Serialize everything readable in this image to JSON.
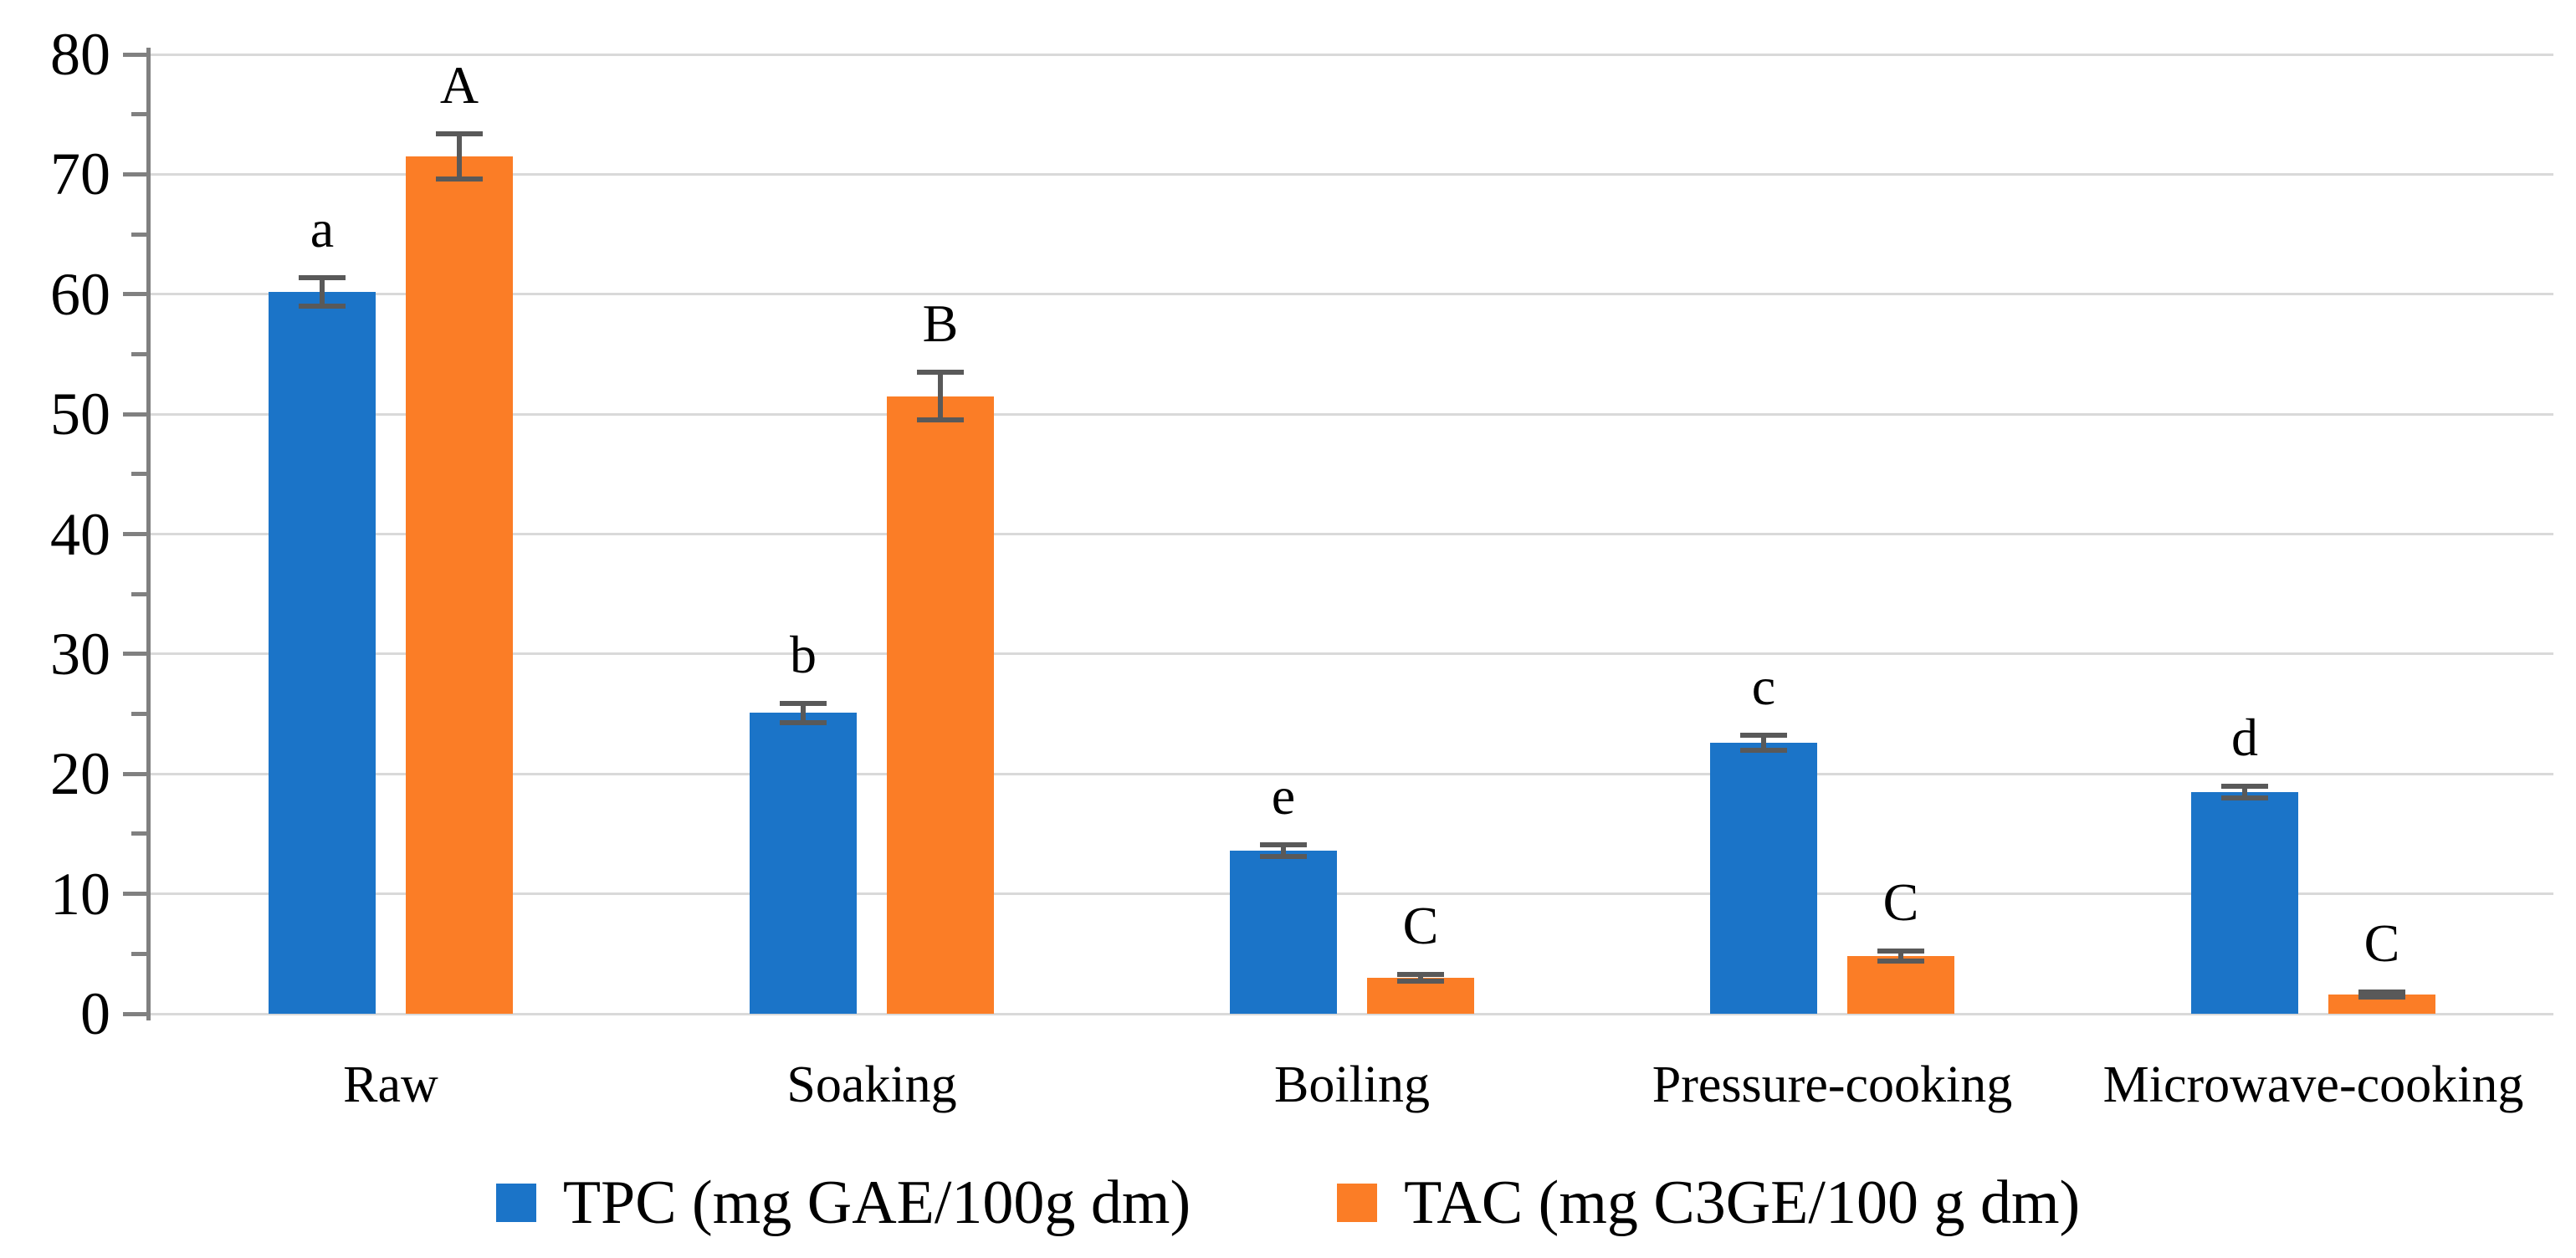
{
  "figure": {
    "background": "#FFFFFF"
  },
  "chart_data": {
    "type": "bar",
    "title": "",
    "categories": [
      "Raw",
      "Soaking",
      "Boiling",
      "Pressure-cooking",
      "Microwave-cooking"
    ],
    "series": [
      {
        "name": "TPC (mg GAE/100g dm)",
        "color": "#1B74C8",
        "values": [
          60.2,
          25.1,
          13.6,
          22.6,
          18.5
        ],
        "errors": [
          1.2,
          0.8,
          0.5,
          0.6,
          0.5
        ],
        "letters": [
          "a",
          "b",
          "e",
          "c",
          "d"
        ]
      },
      {
        "name": "TAC (mg C3GE/100 g dm)",
        "color": "#FB7D26",
        "values": [
          71.5,
          51.5,
          3.0,
          4.8,
          1.6
        ],
        "errors": [
          1.9,
          2.0,
          0.3,
          0.4,
          0.2
        ],
        "letters": [
          "A",
          "B",
          "C",
          "C",
          "C"
        ]
      }
    ],
    "ylim": [
      0,
      80
    ],
    "y_major_step": 10,
    "y_minor_step": 5,
    "y_tick_labels": [
      "0",
      "10",
      "20",
      "30",
      "40",
      "50",
      "60",
      "70",
      "80"
    ],
    "xlabel": "",
    "ylabel": "",
    "grid": "horizontal-major",
    "legend_position": "bottom-center",
    "colors": {
      "gridline": "#D9D9D9",
      "axis": "#808080",
      "error_bar": "#595959",
      "text": "#000000"
    }
  }
}
